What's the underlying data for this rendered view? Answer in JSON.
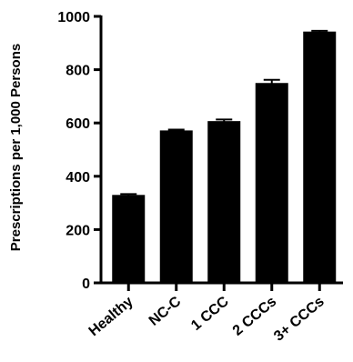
{
  "chart_data": {
    "type": "bar",
    "title": "",
    "xlabel": "",
    "ylabel": "Prescriptions per 1,000 Persons",
    "categories": [
      "Healthy",
      "NC-C",
      "1 CCC",
      "2 CCCs",
      "3+ CCCs"
    ],
    "values": [
      330,
      572,
      607,
      750,
      943
    ],
    "errors": [
      3,
      3,
      6,
      12,
      3
    ],
    "ylim": [
      0,
      1000
    ],
    "yticks": [
      0,
      200,
      400,
      600,
      800,
      1000
    ],
    "grid": false,
    "legend": "none",
    "bar_color": "#000000"
  }
}
